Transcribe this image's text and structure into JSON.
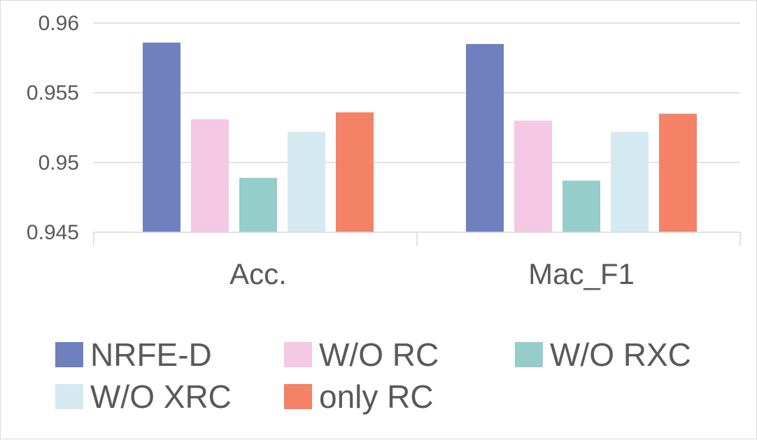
{
  "chart_data": {
    "type": "bar",
    "title": "",
    "xlabel": "",
    "ylabel": "",
    "categories": [
      "Acc.",
      "Mac_F1"
    ],
    "yticks": [
      "0.945",
      "0.95",
      "0.955",
      "0.96"
    ],
    "ylim": [
      0.945,
      0.96
    ],
    "grid": true,
    "legend_position": "bottom",
    "series": [
      {
        "name": "NRFE-D",
        "color": "#6f80bf",
        "values": [
          0.9586,
          0.9585
        ]
      },
      {
        "name": "W/O RC",
        "color": "#f5c8e4",
        "values": [
          0.9531,
          0.953
        ]
      },
      {
        "name": "W/O RXC",
        "color": "#95cdcb",
        "values": [
          0.9489,
          0.9487
        ]
      },
      {
        "name": "W/O XRC",
        "color": "#d4eaf0",
        "values": [
          0.9522,
          0.9522
        ]
      },
      {
        "name": "only RC",
        "color": "#f48266",
        "values": [
          0.9536,
          0.9535
        ]
      }
    ]
  }
}
